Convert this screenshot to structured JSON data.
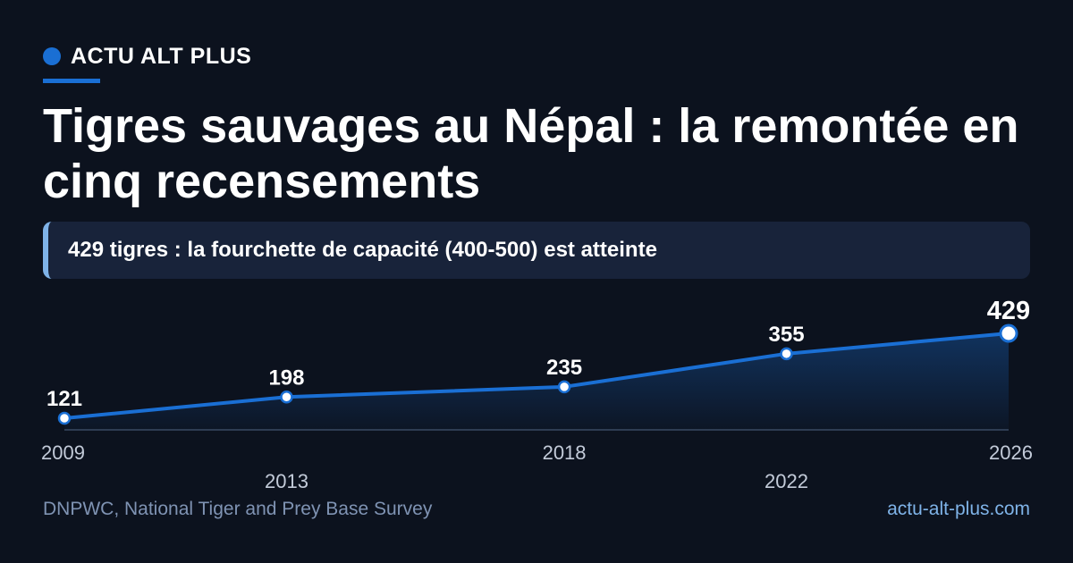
{
  "brand": {
    "name": "ACTU ALT PLUS",
    "accent_color": "#1a6fd4"
  },
  "headline": "Tigres sauvages au Népal : la remontée en cinq recensements",
  "callout": "429 tigres : la fourchette de capacité (400-500) est atteinte",
  "chart_data": {
    "type": "area",
    "x": [
      2009,
      2013,
      2018,
      2022,
      2026
    ],
    "values": [
      121,
      198,
      235,
      355,
      429
    ],
    "data_labels": [
      "121",
      "198",
      "235",
      "355",
      "429"
    ],
    "tick_labels": [
      "2009",
      "2013",
      "2018",
      "2022",
      "2026"
    ],
    "xlim": [
      2009,
      2026
    ],
    "ylim": [
      80,
      440
    ],
    "highlight_last_point": true,
    "line_color": "#1a6fd4",
    "grid": false
  },
  "footer": {
    "source": "DNPWC, National Tiger and Prey Base Survey",
    "site": "actu-alt-plus.com"
  }
}
